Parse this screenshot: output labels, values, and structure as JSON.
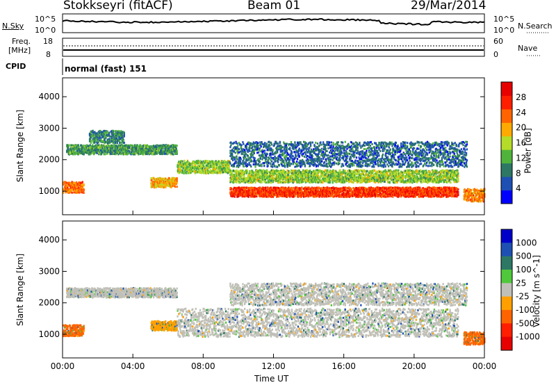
{
  "header": {
    "station": "Stokkseyri (fitACF)",
    "beam": "Beam 01",
    "date": "29/Mar/2014"
  },
  "noise_panel": {
    "left_label": "N.Sky",
    "left_ticks": [
      "10^5",
      "10^0"
    ],
    "right_ticks": [
      "10^5",
      "10^0"
    ],
    "right_label": "N.Search"
  },
  "freq_panel": {
    "left_label_top": "Freq.",
    "left_label_unit": "[MHz]",
    "left_ticks": [
      "18",
      "8"
    ],
    "right_ticks": [
      "60",
      "0"
    ],
    "right_label": "Nave"
  },
  "cpid": {
    "label": "CPID",
    "value": "normal (fast) 151"
  },
  "x_axis": {
    "label": "Time UT",
    "ticks": [
      "00:00",
      "04:00",
      "08:00",
      "12:00",
      "16:00",
      "20:00",
      "00:00"
    ]
  },
  "colors": {
    "power": [
      "#0000ff",
      "#1e50b4",
      "#2d7864",
      "#50b43c",
      "#b4dc28",
      "#ffaa00",
      "#ff6400",
      "#ff1e00",
      "#e60000"
    ],
    "velocity": [
      "#0000c8",
      "#1e50b4",
      "#2d7864",
      "#50c83c",
      "#c0c0b8",
      "#ffa000",
      "#ff6400",
      "#ff1e00",
      "#e60000"
    ]
  },
  "chart_data": [
    {
      "type": "heatmap",
      "title": "Power",
      "xlabel": "",
      "ylabel": "Slant Range [km]",
      "y_ticks": [
        "1000",
        "2000",
        "3000",
        "4000"
      ],
      "ylim": [
        250,
        4600
      ],
      "xlim": [
        0,
        24
      ],
      "colorbar": {
        "label": "Power [dB]",
        "ticks": [
          "4",
          "8",
          "12",
          "16",
          "20",
          "24",
          "28"
        ],
        "range": [
          0,
          32
        ]
      },
      "bands": [
        {
          "t": [
            0.0,
            1.2
          ],
          "center_km": 1150,
          "width_km": 350,
          "level": 24
        },
        {
          "t": [
            0.2,
            6.5
          ],
          "center_km": 2350,
          "width_km": 300,
          "level": 10
        },
        {
          "t": [
            1.5,
            3.5
          ],
          "center_km": 2750,
          "width_km": 400,
          "level": 8
        },
        {
          "t": [
            5.0,
            6.5
          ],
          "center_km": 1300,
          "width_km": 300,
          "level": 20
        },
        {
          "t": [
            6.5,
            9.5
          ],
          "center_km": 1800,
          "width_km": 400,
          "level": 14
        },
        {
          "t": [
            9.5,
            22.5
          ],
          "center_km": 1000,
          "width_km": 300,
          "level": 27
        },
        {
          "t": [
            9.5,
            22.5
          ],
          "center_km": 1500,
          "width_km": 400,
          "level": 14
        },
        {
          "t": [
            9.5,
            23.0
          ],
          "center_km": 2200,
          "width_km": 800,
          "level": 6
        },
        {
          "t": [
            22.8,
            24.0
          ],
          "center_km": 900,
          "width_km": 400,
          "level": 22
        }
      ]
    },
    {
      "type": "heatmap",
      "title": "Velocity",
      "xlabel": "Time UT",
      "ylabel": "Slant Range [km]",
      "y_ticks": [
        "1000",
        "2000",
        "3000",
        "4000"
      ],
      "ylim": [
        250,
        4600
      ],
      "xlim": [
        0,
        24
      ],
      "colorbar": {
        "label": "Velocity [m s^-1]",
        "ticks": [
          "1000",
          "500",
          "100",
          "25",
          "-25",
          "-100",
          "-500",
          "-1000"
        ]
      },
      "bands": [
        {
          "t": [
            0.0,
            1.2
          ],
          "center_km": 1150,
          "width_km": 350,
          "class": "-500"
        },
        {
          "t": [
            0.2,
            6.5
          ],
          "center_km": 2350,
          "width_km": 300,
          "class": "0"
        },
        {
          "t": [
            5.0,
            6.5
          ],
          "center_km": 1300,
          "width_km": 300,
          "class": "-100"
        },
        {
          "t": [
            6.5,
            22.5
          ],
          "center_km": 1400,
          "width_km": 900,
          "class": "0"
        },
        {
          "t": [
            9.5,
            23.0
          ],
          "center_km": 2300,
          "width_km": 700,
          "class": "0"
        },
        {
          "t": [
            22.8,
            24.0
          ],
          "center_km": 900,
          "width_km": 400,
          "class": "-500"
        }
      ]
    }
  ]
}
